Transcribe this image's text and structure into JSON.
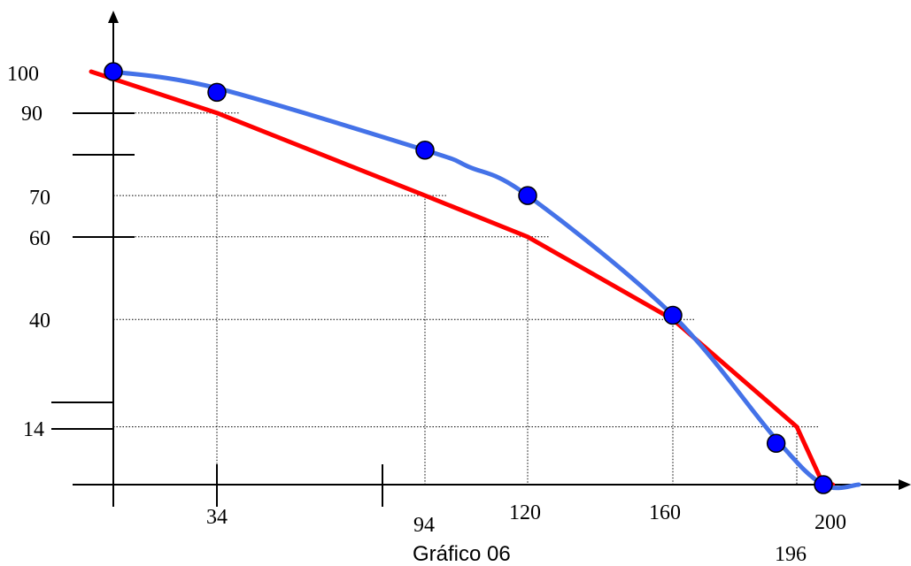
{
  "chart_data": {
    "type": "line",
    "caption": "Gráfico 06",
    "x_tick_labels": [
      "34",
      "94",
      "120",
      "160",
      "200",
      "196"
    ],
    "y_tick_labels": [
      "100",
      "90",
      "70",
      "60",
      "40",
      "14"
    ],
    "series": [
      {
        "color": "#ff0000",
        "style": "polyline",
        "points": [
          [
            -5,
            100
          ],
          [
            34,
            90
          ],
          [
            94,
            70
          ],
          [
            120,
            60
          ],
          [
            160,
            40
          ],
          [
            196,
            14
          ],
          [
            200,
            0
          ],
          [
            204,
            0
          ]
        ]
      },
      {
        "color": "#4472e8",
        "style": "smooth",
        "points": [
          [
            0,
            100
          ],
          [
            34,
            96
          ],
          [
            94,
            81
          ],
          [
            105,
            77
          ],
          [
            120,
            70
          ],
          [
            160,
            41
          ],
          [
            190,
            11
          ],
          [
            200,
            0
          ],
          [
            215,
            0
          ]
        ]
      }
    ],
    "markers": {
      "color": "#0000ff",
      "points": [
        [
          0,
          100
        ],
        [
          34,
          95
        ],
        [
          94,
          81
        ],
        [
          120,
          70
        ],
        [
          160,
          41
        ],
        [
          190,
          10
        ],
        [
          200,
          0
        ]
      ]
    },
    "dotted_guides": [
      {
        "y": 90,
        "x_from": 0,
        "x_to": 34
      },
      {
        "y": 70,
        "x_from": 0,
        "x_to": 94
      },
      {
        "y": 60,
        "x_from": 0,
        "x_to": 120
      },
      {
        "y": 40,
        "x_from": 0,
        "x_to": 160
      },
      {
        "y": 14,
        "x_from": 0,
        "x_to": 196
      }
    ]
  }
}
